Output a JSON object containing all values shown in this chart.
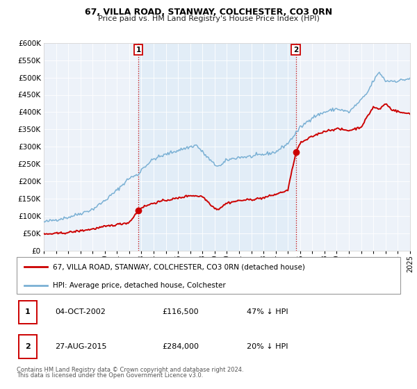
{
  "title": "67, VILLA ROAD, STANWAY, COLCHESTER, CO3 0RN",
  "subtitle": "Price paid vs. HM Land Registry's House Price Index (HPI)",
  "xlim": [
    1995,
    2025
  ],
  "ylim": [
    0,
    600000
  ],
  "yticks": [
    0,
    50000,
    100000,
    150000,
    200000,
    250000,
    300000,
    350000,
    400000,
    450000,
    500000,
    550000,
    600000
  ],
  "xticks": [
    1995,
    1996,
    1997,
    1998,
    1999,
    2000,
    2001,
    2002,
    2003,
    2004,
    2005,
    2006,
    2007,
    2008,
    2009,
    2010,
    2011,
    2012,
    2013,
    2014,
    2015,
    2016,
    2017,
    2018,
    2019,
    2020,
    2021,
    2022,
    2023,
    2024,
    2025
  ],
  "sale1_x": 2002.75,
  "sale1_y": 116500,
  "sale1_label": "1",
  "sale2_x": 2015.65,
  "sale2_y": 284000,
  "sale2_label": "2",
  "price_color": "#cc0000",
  "hpi_color": "#7ab0d4",
  "vline_color": "#cc0000",
  "span_color": "#d0e4f4",
  "legend_label_price": "67, VILLA ROAD, STANWAY, COLCHESTER, CO3 0RN (detached house)",
  "legend_label_hpi": "HPI: Average price, detached house, Colchester",
  "table_row1": [
    "1",
    "04-OCT-2002",
    "£116,500",
    "47% ↓ HPI"
  ],
  "table_row2": [
    "2",
    "27-AUG-2015",
    "£284,000",
    "20% ↓ HPI"
  ],
  "footnote1": "Contains HM Land Registry data © Crown copyright and database right 2024.",
  "footnote2": "This data is licensed under the Open Government Licence v3.0.",
  "plot_bg_color": "#edf2f9"
}
